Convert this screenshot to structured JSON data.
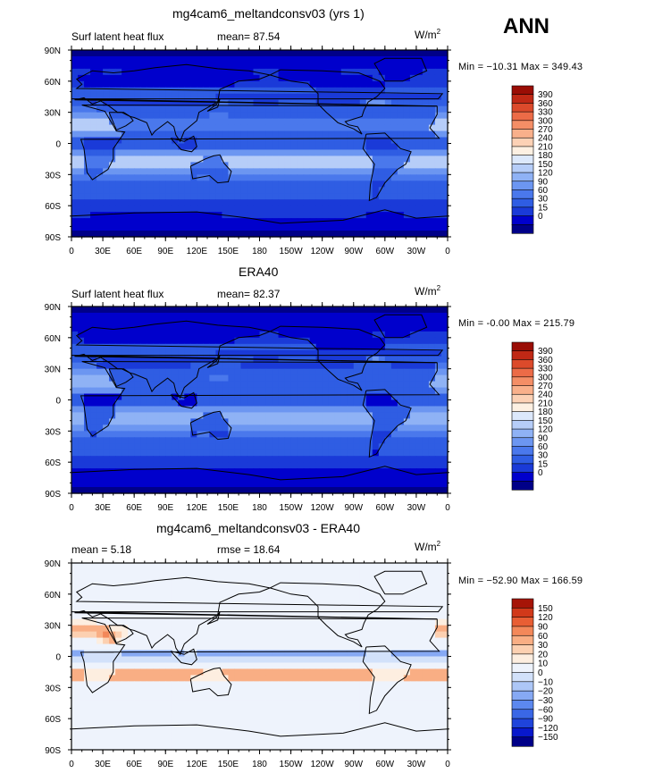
{
  "season": "ANN",
  "lat_ticks": [
    "90N",
    "60N",
    "30N",
    "0",
    "30S",
    "60S",
    "90S"
  ],
  "lon_ticks": [
    "0",
    "30E",
    "60E",
    "90E",
    "120E",
    "150E",
    "180",
    "150W",
    "120W",
    "90W",
    "60W",
    "30W",
    "0"
  ],
  "colors": {
    "abs_scale": [
      "#000088",
      "#0000cc",
      "#1a3ad8",
      "#2f5de3",
      "#4a78ec",
      "#6c96f1",
      "#8fb2f5",
      "#b6cdf8",
      "#dce8fb",
      "#fdf0e2",
      "#fcd1b5",
      "#f9b08b",
      "#f48e66",
      "#ec6b47",
      "#dc4a2b",
      "#c02815",
      "#9a0d05"
    ],
    "diff_scale": [
      "#000088",
      "#0818cc",
      "#1f44db",
      "#3a67e6",
      "#5c88ef",
      "#86a9f4",
      "#adc7f7",
      "#d2e1fa",
      "#eef3fc",
      "#fdeee0",
      "#fcd0b1",
      "#f9ae84",
      "#f3885a",
      "#e85e34",
      "#d1391a",
      "#a61407"
    ]
  },
  "panels": [
    {
      "title": "mg4cam6_meltandconsv03 (yrs 1)",
      "left_label": "Surf latent heat flux",
      "stat_text": "mean=  87.54",
      "units": "W/m",
      "units_sup": "2",
      "minmax": "Min = −10.31 Max = 349.43",
      "colorbar_labels": [
        "390",
        "360",
        "330",
        "300",
        "270",
        "240",
        "210",
        "180",
        "150",
        "120",
        "90",
        "60",
        "30",
        "15",
        "0"
      ],
      "chart_data": {
        "type": "heatmap",
        "title": "mg4cam6_meltandconsv03 (yrs 1)",
        "variable": "Surf latent heat flux",
        "units": "W/m2",
        "mean": 87.54,
        "min": -10.31,
        "max": 349.43,
        "levels": [
          0,
          15,
          30,
          60,
          90,
          120,
          150,
          180,
          210,
          240,
          270,
          300,
          330,
          360,
          390
        ],
        "xlim": [
          0,
          360
        ],
        "ylim": [
          -90,
          90
        ]
      }
    },
    {
      "title": "ERA40",
      "left_label": "Surf latent heat flux",
      "stat_text": "mean=  82.37",
      "units": "W/m",
      "units_sup": "2",
      "minmax": "Min =  -0.00 Max = 215.79",
      "colorbar_labels": [
        "390",
        "360",
        "330",
        "300",
        "270",
        "240",
        "210",
        "180",
        "150",
        "120",
        "90",
        "60",
        "30",
        "15",
        "0"
      ],
      "chart_data": {
        "type": "heatmap",
        "title": "ERA40",
        "variable": "Surf latent heat flux",
        "units": "W/m2",
        "mean": 82.37,
        "min": -0.0,
        "max": 215.79,
        "levels": [
          0,
          15,
          30,
          60,
          90,
          120,
          150,
          180,
          210,
          240,
          270,
          300,
          330,
          360,
          390
        ],
        "xlim": [
          0,
          360
        ],
        "ylim": [
          -90,
          90
        ]
      }
    },
    {
      "title": "mg4cam6_meltandconsv03 - ERA40",
      "left_label": "mean =   5.18",
      "stat_text": "rmse =  18.64",
      "units": "W/m",
      "units_sup": "2",
      "minmax": "Min = −52.90 Max = 166.59",
      "colorbar_labels": [
        "150",
        "120",
        "90",
        "60",
        "30",
        "20",
        "10",
        "0",
        "−10",
        "−20",
        "−30",
        "−60",
        "−90",
        "−120",
        "−150"
      ],
      "chart_data": {
        "type": "heatmap",
        "title": "mg4cam6_meltandconsv03 - ERA40",
        "units": "W/m2",
        "mean": 5.18,
        "rmse": 18.64,
        "min": -52.9,
        "max": 166.59,
        "levels": [
          -150,
          -120,
          -90,
          -60,
          -30,
          -20,
          -10,
          0,
          10,
          20,
          30,
          60,
          90,
          120,
          150
        ],
        "xlim": [
          0,
          360
        ],
        "ylim": [
          -90,
          90
        ]
      }
    }
  ]
}
